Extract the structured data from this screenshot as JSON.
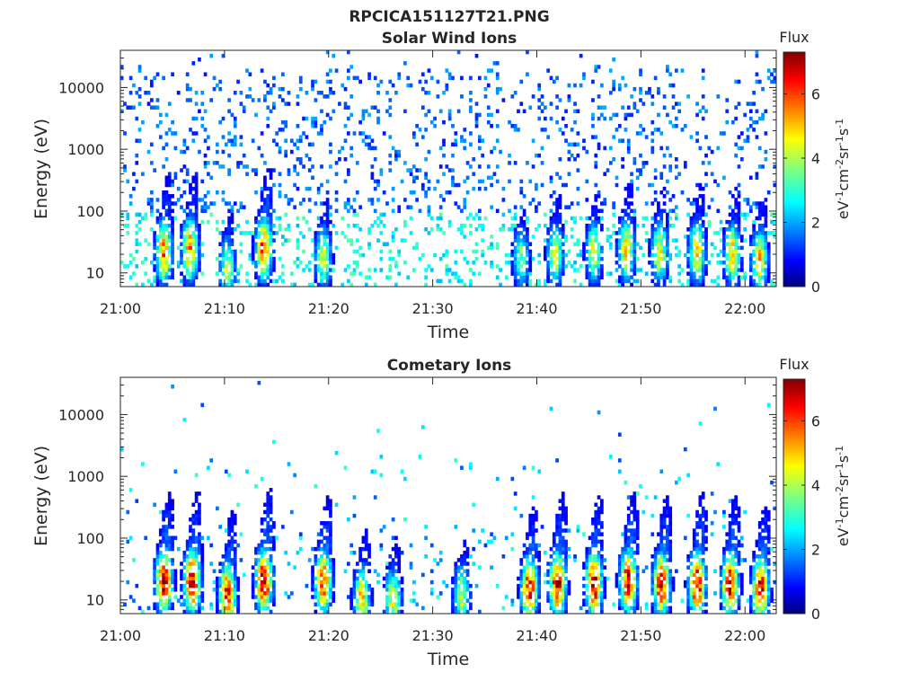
{
  "figure": {
    "title": "RPCICA151127T21.PNG"
  },
  "colormap": "jet",
  "chart_data": [
    {
      "type": "heatmap",
      "title": "Solar Wind Ions",
      "xlabel": "Time",
      "ylabel": "Energy (eV)",
      "xticks": [
        "21:00",
        "21:10",
        "21:20",
        "21:30",
        "21:40",
        "21:50",
        "22:00"
      ],
      "xlim_minutes_from_2100": [
        0,
        63
      ],
      "y_scale": "log",
      "yticks": [
        "10",
        "100",
        "1000",
        "10000"
      ],
      "ylim": [
        6,
        40000
      ],
      "colorbar": {
        "title": "Flux",
        "label": "eV-1cm-2sr-1s-1",
        "ticks": [
          "0",
          "2",
          "4",
          "6"
        ],
        "range": [
          0,
          7.3
        ]
      },
      "intense_bursts": [
        {
          "t": 4.2,
          "e": 22,
          "peak": 5.6
        },
        {
          "t": 6.7,
          "e": 24,
          "peak": 5.5
        },
        {
          "t": 10.3,
          "e": 12,
          "peak": 4.0
        },
        {
          "t": 13.8,
          "e": 25,
          "peak": 6.0
        },
        {
          "t": 19.5,
          "e": 18,
          "peak": 4.2
        },
        {
          "t": 38.5,
          "e": 18,
          "peak": 3.6
        },
        {
          "t": 41.8,
          "e": 20,
          "peak": 4.3
        },
        {
          "t": 45.5,
          "e": 22,
          "peak": 4.3
        },
        {
          "t": 48.6,
          "e": 24,
          "peak": 4.8
        },
        {
          "t": 51.8,
          "e": 22,
          "peak": 4.6
        },
        {
          "t": 55.4,
          "e": 22,
          "peak": 4.8
        },
        {
          "t": 58.8,
          "e": 20,
          "peak": 4.8
        },
        {
          "t": 61.4,
          "e": 16,
          "peak": 4.8
        }
      ],
      "background": "sparse 1-2 flux speckle from ~10 eV to ~20000 eV throughout"
    },
    {
      "type": "heatmap",
      "title": "Cometary Ions",
      "xlabel": "Time",
      "ylabel": "Energy (eV)",
      "xticks": [
        "21:00",
        "21:10",
        "21:20",
        "21:30",
        "21:40",
        "21:50",
        "22:00"
      ],
      "xlim_minutes_from_2100": [
        0,
        63
      ],
      "y_scale": "log",
      "yticks": [
        "10",
        "100",
        "1000",
        "10000"
      ],
      "ylim": [
        6,
        40000
      ],
      "colorbar": {
        "title": "Flux",
        "label": "eV-1cm-2sr-1s-1",
        "ticks": [
          "0",
          "2",
          "4",
          "6"
        ],
        "range": [
          0,
          7.3
        ]
      },
      "intense_bursts": [
        {
          "t": 4.2,
          "e": 20,
          "peak": 6.8
        },
        {
          "t": 6.9,
          "e": 20,
          "peak": 6.8
        },
        {
          "t": 10.3,
          "e": 12,
          "peak": 6.3
        },
        {
          "t": 13.8,
          "e": 20,
          "peak": 7.0
        },
        {
          "t": 19.5,
          "e": 20,
          "peak": 6.3
        },
        {
          "t": 23.2,
          "e": 10,
          "peak": 5.0
        },
        {
          "t": 26.2,
          "e": 10,
          "peak": 4.5
        },
        {
          "t": 32.8,
          "e": 12,
          "peak": 4.0
        },
        {
          "t": 39.3,
          "e": 15,
          "peak": 6.3
        },
        {
          "t": 42.0,
          "e": 18,
          "peak": 6.8
        },
        {
          "t": 45.5,
          "e": 18,
          "peak": 6.7
        },
        {
          "t": 48.8,
          "e": 20,
          "peak": 6.8
        },
        {
          "t": 52.0,
          "e": 18,
          "peak": 6.7
        },
        {
          "t": 55.4,
          "e": 18,
          "peak": 6.9
        },
        {
          "t": 58.6,
          "e": 18,
          "peak": 6.7
        },
        {
          "t": 61.5,
          "e": 15,
          "peak": 6.6
        }
      ],
      "background": "sparse low-flux points, isolated high-energy dots"
    }
  ]
}
